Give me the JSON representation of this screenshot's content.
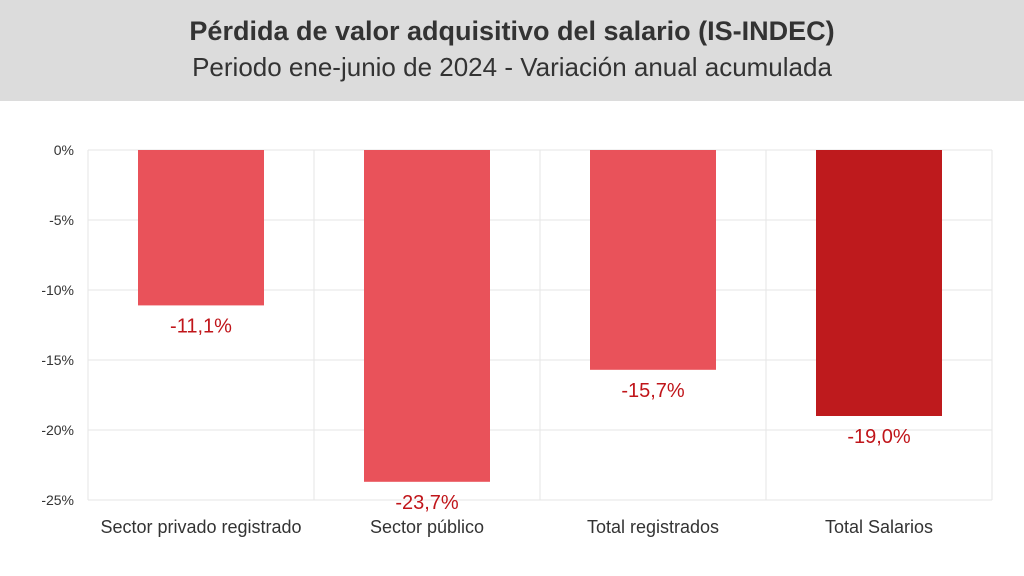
{
  "header": {
    "title": "Pérdida de valor adquisitivo del salario (IS-INDEC)",
    "subtitle": "Periodo ene-junio de 2024 - Variación anual acumulada"
  },
  "colors": {
    "bar_default": "#e9525a",
    "bar_highlight": "#be1a1d",
    "label": "#c0151a",
    "axis_text": "#333333",
    "grid": "#e6e6e6"
  },
  "chart_data": {
    "type": "bar",
    "title": "Pérdida de valor adquisitivo del salario (IS-INDEC)",
    "subtitle": "Periodo ene-junio de 2024 - Variación anual acumulada",
    "categories": [
      "Sector privado registrado",
      "Sector público",
      "Total registrados",
      "Total Salarios"
    ],
    "values": [
      -11.1,
      -23.7,
      -15.7,
      -19.0
    ],
    "data_labels": [
      "-11,1%",
      "-23,7%",
      "-15,7%",
      "-19,0%"
    ],
    "highlight_index": 3,
    "ylim": [
      -25,
      0
    ],
    "yticks": [
      0,
      -5,
      -10,
      -15,
      -20,
      -25
    ],
    "ytick_labels": [
      "0%",
      "-5%",
      "-10%",
      "-15%",
      "-20%",
      "-25%"
    ],
    "xlabel": "",
    "ylabel": "",
    "grid": true,
    "legend": "none"
  }
}
